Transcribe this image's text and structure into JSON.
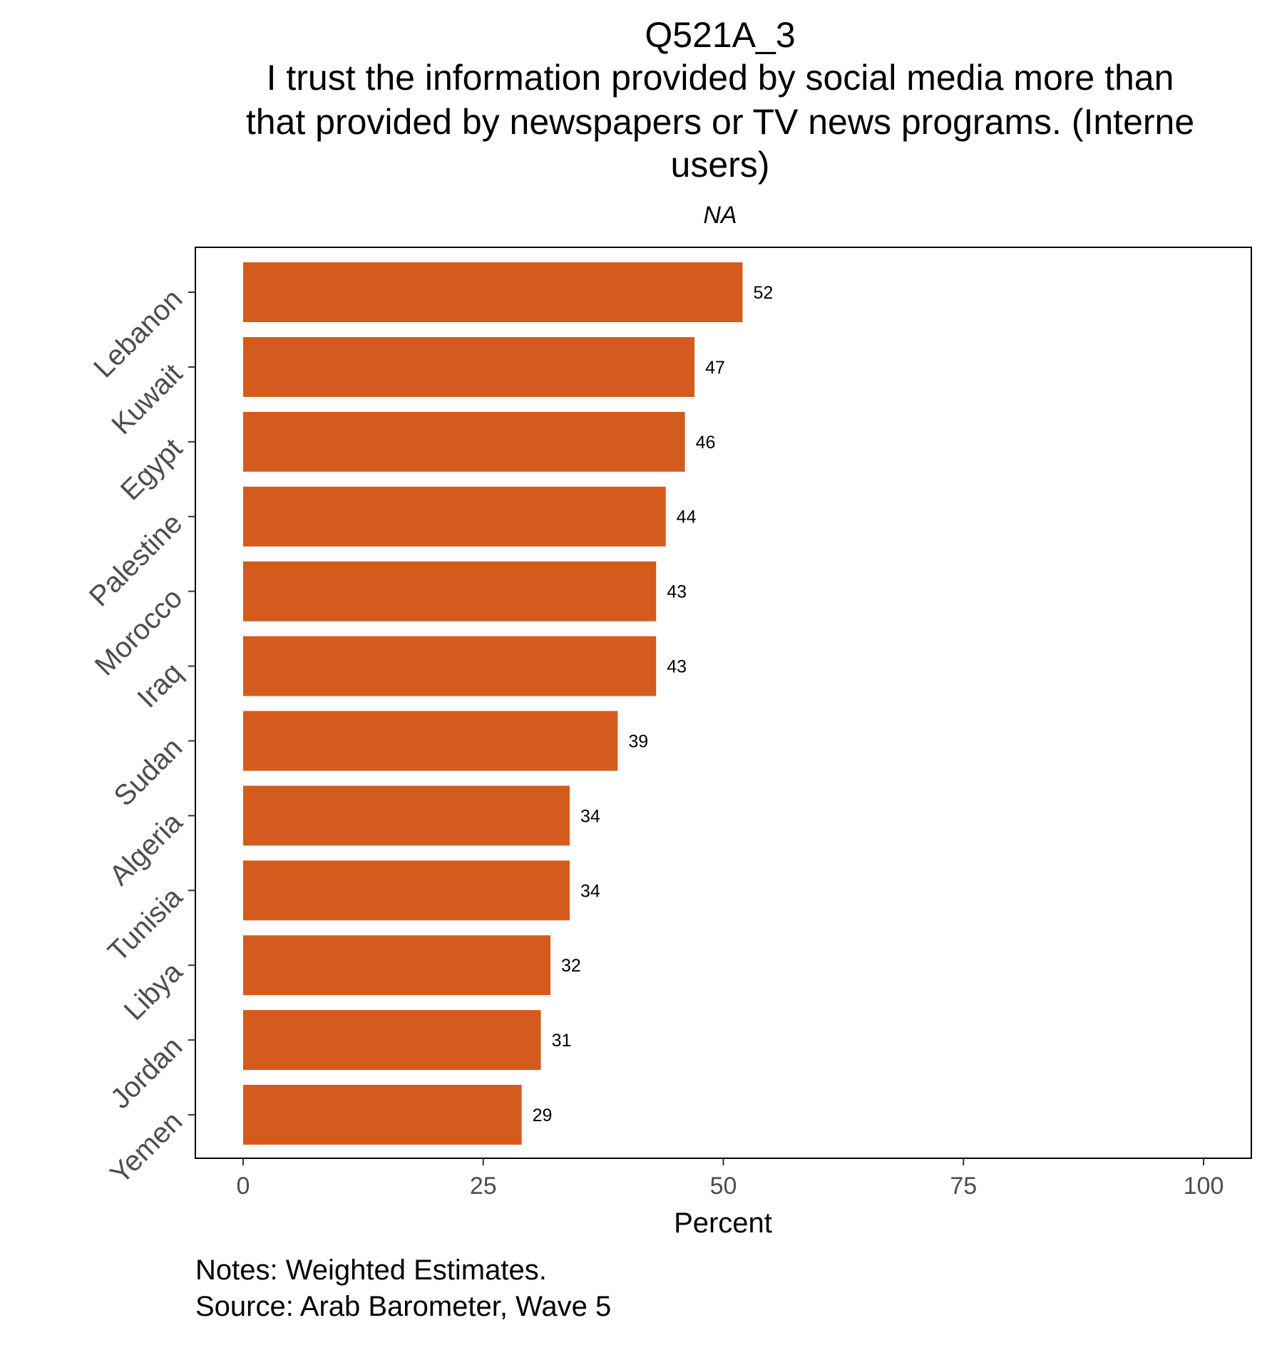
{
  "chart_data": {
    "type": "bar",
    "orientation": "horizontal",
    "title_lines": [
      "Q521A_3",
      "I trust the information provided by social media more than",
      "that provided by newspapers or TV news programs. (Interne",
      "users)"
    ],
    "subtitle": "NA",
    "xlabel": "Percent",
    "ylabel": "",
    "xlim": [
      0,
      100
    ],
    "x_ticks": [
      "0",
      "25",
      "50",
      "75",
      "100"
    ],
    "x_tick_values": [
      0,
      25,
      50,
      75,
      100
    ],
    "categories": [
      "Lebanon",
      "Kuwait",
      "Egypt",
      "Palestine",
      "Morocco",
      "Iraq",
      "Sudan",
      "Algeria",
      "Tunisia",
      "Libya",
      "Jordan",
      "Yemen"
    ],
    "values": [
      52,
      47,
      46,
      44,
      43,
      43,
      39,
      34,
      34,
      32,
      31,
      29
    ],
    "data_labels": [
      "52",
      "47",
      "46",
      "44",
      "43",
      "43",
      "39",
      "34",
      "34",
      "32",
      "31",
      "29"
    ],
    "bar_color": "#d55a1d",
    "grid": false,
    "legend": "none",
    "caption_lines": [
      "Notes: Weighted Estimates.",
      "Source: Arab Barometer, Wave 5"
    ]
  }
}
